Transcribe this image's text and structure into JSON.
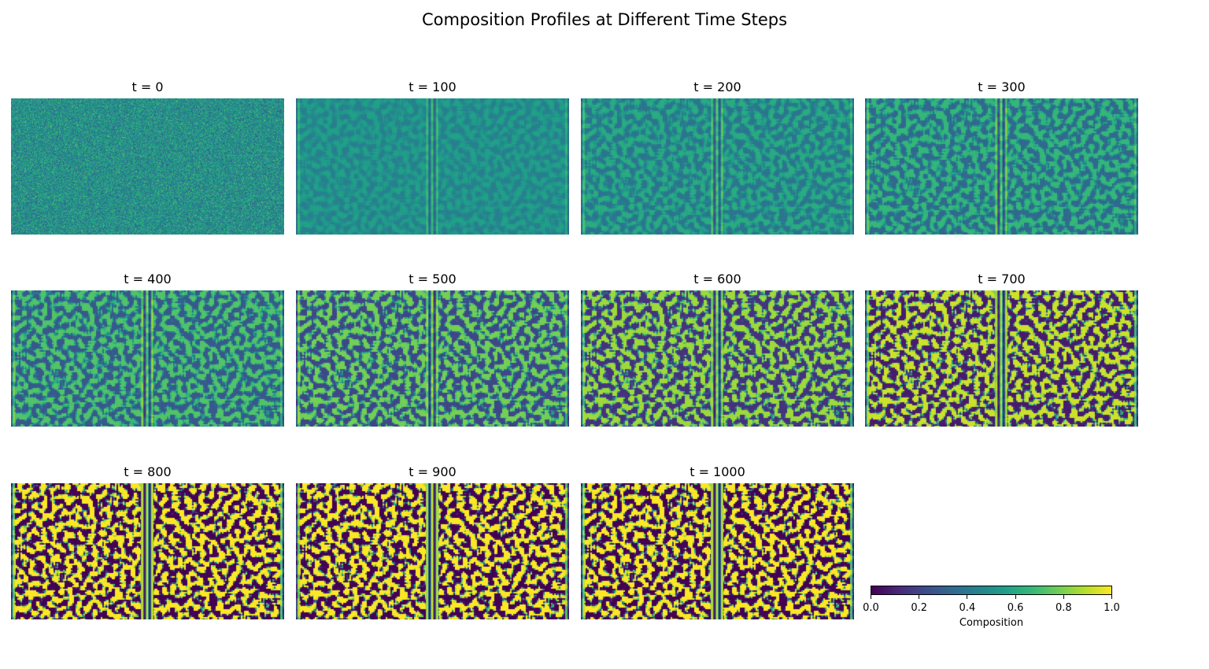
{
  "chart_data": {
    "type": "heatmap",
    "title": "Composition Profiles at Different Time Steps",
    "colormap": "viridis",
    "value_range": [
      0.0,
      1.0
    ],
    "colorbar": {
      "label": "Composition",
      "ticks": [
        "0.0",
        "0.2",
        "0.4",
        "0.6",
        "0.8",
        "1.0"
      ]
    },
    "panels": [
      {
        "title": "t = 0",
        "time": 0
      },
      {
        "title": "t = 100",
        "time": 100
      },
      {
        "title": "t = 200",
        "time": 200
      },
      {
        "title": "t = 300",
        "time": 300
      },
      {
        "title": "t = 400",
        "time": 400
      },
      {
        "title": "t = 500",
        "time": 500
      },
      {
        "title": "t = 600",
        "time": 600
      },
      {
        "title": "t = 700",
        "time": 700
      },
      {
        "title": "t = 800",
        "time": 800
      },
      {
        "title": "t = 900",
        "time": 900
      },
      {
        "title": "t = 1000",
        "time": 1000
      }
    ]
  }
}
